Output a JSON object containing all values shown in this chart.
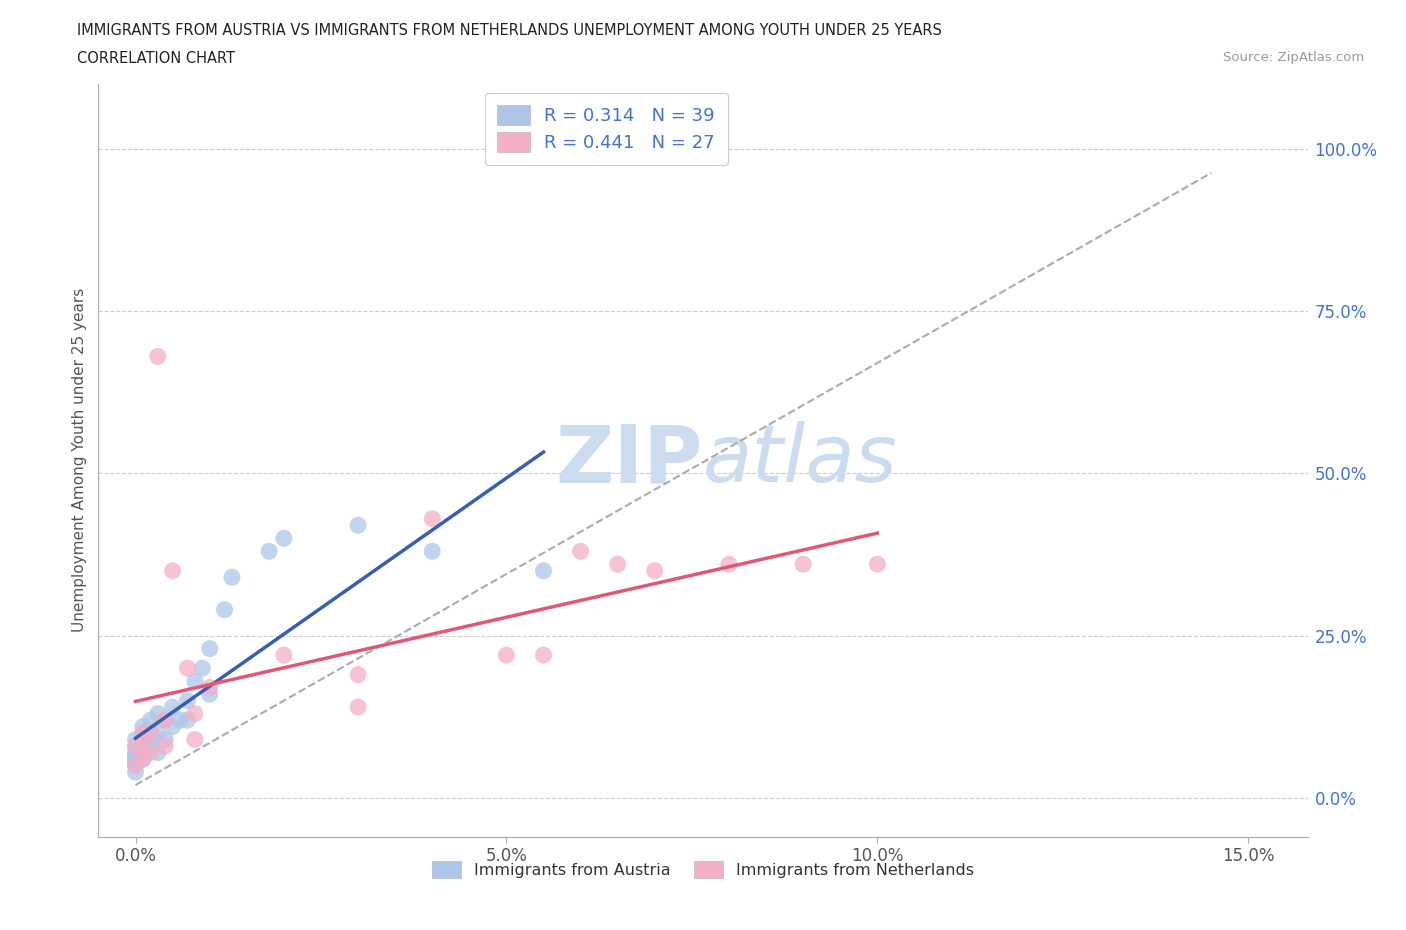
{
  "title_line1": "IMMIGRANTS FROM AUSTRIA VS IMMIGRANTS FROM NETHERLANDS UNEMPLOYMENT AMONG YOUTH UNDER 25 YEARS",
  "title_line2": "CORRELATION CHART",
  "source_text": "Source: ZipAtlas.com",
  "ylabel": "Unemployment Among Youth under 25 years",
  "legend_austria": "Immigrants from Austria",
  "legend_netherlands": "Immigrants from Netherlands",
  "R_austria": 0.314,
  "N_austria": 39,
  "R_netherlands": 0.441,
  "N_netherlands": 27,
  "color_austria": "#adc6e8",
  "color_netherlands": "#f2afc6",
  "color_austria_line": "#3a5faa",
  "color_netherlands_line": "#e05878",
  "color_dashed": "#aaaaaa",
  "color_corr_text": "#4472c4",
  "color_right_ticks": "#4472c4",
  "watermark_color": "#ccdcee",
  "background_color": "#ffffff",
  "austria_x": [
    0.0,
    0.0,
    0.0,
    0.0,
    0.0,
    0.0,
    0.0,
    0.0,
    0.001,
    0.001,
    0.001,
    0.001,
    0.001,
    0.001,
    0.002,
    0.002,
    0.002,
    0.002,
    0.003,
    0.003,
    0.003,
    0.004,
    0.004,
    0.005,
    0.005,
    0.006,
    0.007,
    0.007,
    0.008,
    0.009,
    0.01,
    0.01,
    0.012,
    0.013,
    0.018,
    0.02,
    0.03,
    0.04,
    0.055
  ],
  "austria_y": [
    0.04,
    0.05,
    0.055,
    0.06,
    0.065,
    0.07,
    0.08,
    0.09,
    0.06,
    0.07,
    0.075,
    0.09,
    0.1,
    0.11,
    0.08,
    0.09,
    0.1,
    0.12,
    0.07,
    0.1,
    0.13,
    0.09,
    0.12,
    0.11,
    0.14,
    0.12,
    0.12,
    0.15,
    0.18,
    0.2,
    0.16,
    0.23,
    0.29,
    0.34,
    0.38,
    0.4,
    0.42,
    0.38,
    0.35
  ],
  "netherlands_x": [
    0.0,
    0.0,
    0.001,
    0.001,
    0.001,
    0.002,
    0.002,
    0.003,
    0.004,
    0.004,
    0.005,
    0.007,
    0.008,
    0.008,
    0.01,
    0.02,
    0.03,
    0.03,
    0.04,
    0.05,
    0.055,
    0.06,
    0.065,
    0.07,
    0.08,
    0.09,
    0.1
  ],
  "netherlands_y": [
    0.05,
    0.08,
    0.06,
    0.08,
    0.1,
    0.07,
    0.1,
    0.68,
    0.08,
    0.12,
    0.35,
    0.2,
    0.09,
    0.13,
    0.17,
    0.22,
    0.14,
    0.19,
    0.43,
    0.22,
    0.22,
    0.38,
    0.36,
    0.35,
    0.36,
    0.36,
    0.36
  ],
  "x_ticks": [
    0.0,
    0.05,
    0.1,
    0.15
  ],
  "x_tick_labels": [
    "0.0%",
    "5.0%",
    "10.0%",
    "15.0%"
  ],
  "y_ticks_right": [
    0.0,
    0.25,
    0.5,
    0.75,
    1.0
  ],
  "y_tick_labels_right": [
    "0.0%",
    "25.0%",
    "50.0%",
    "75.0%",
    "100.0%"
  ],
  "xlim": [
    -0.005,
    0.158
  ],
  "ylim": [
    -0.06,
    1.1
  ]
}
